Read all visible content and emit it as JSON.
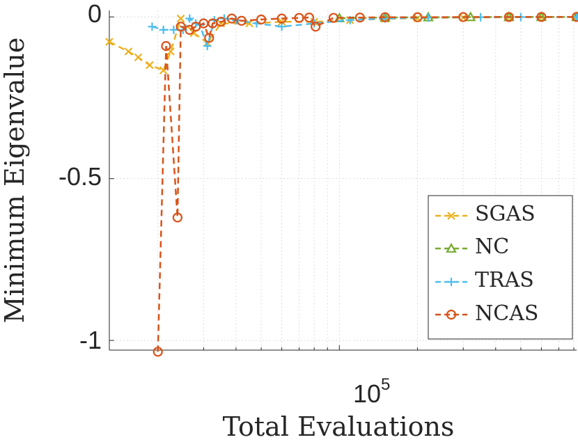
{
  "chart_data": {
    "type": "line",
    "xlabel": "Total Evaluations",
    "ylabel": "Minimum Eigenvalue",
    "x_scale": "log",
    "xlim": [
      13000,
      820000
    ],
    "ylim": [
      -1.03,
      0.02
    ],
    "yticks": [
      0,
      -0.5,
      -1
    ],
    "ytick_labels": [
      "0",
      "-0.5",
      "-1"
    ],
    "xtick_base": "10",
    "xtick_exponent": "5",
    "xtick_value": 100000,
    "grid": true,
    "legend_position": "bottom-right",
    "series": [
      {
        "name": "SGAS",
        "color": "#EDB120",
        "marker": "x",
        "x": [
          13000,
          15400,
          16800,
          18600,
          21000,
          22400,
          24500,
          27500,
          31000,
          35000,
          45000,
          60000,
          80000,
          110000,
          150000,
          200000,
          300000,
          450000,
          600000,
          820000
        ],
        "y": [
          -0.077,
          -0.107,
          -0.125,
          -0.149,
          -0.165,
          -0.107,
          -0.005,
          -0.05,
          -0.08,
          -0.02,
          -0.02,
          -0.015,
          -0.015,
          -0.01,
          -0.006,
          -0.004,
          -0.002,
          -0.001,
          -0.0005,
          -0.0003
        ]
      },
      {
        "name": "NC",
        "color": "#77AC30",
        "marker": "triangle",
        "x": [
          100000,
          150000,
          220000,
          320000,
          450000,
          600000,
          820000
        ],
        "y": [
          -0.004,
          -0.002,
          -0.001,
          -0.0005,
          -0.0003,
          -0.0002,
          -0.0001
        ]
      },
      {
        "name": "TRAS",
        "color": "#4DBEEE",
        "marker": "plus",
        "x": [
          19000,
          21000,
          23000,
          25000,
          26500,
          28000,
          29000,
          31000,
          33000,
          36000,
          40000,
          48000,
          60000,
          80000,
          110000,
          150000,
          220000,
          350000,
          500000,
          820000
        ],
        "y": [
          -0.03,
          -0.04,
          -0.04,
          -0.04,
          -0.005,
          -0.02,
          -0.025,
          -0.09,
          -0.01,
          -0.005,
          -0.01,
          -0.02,
          -0.03,
          -0.02,
          -0.01,
          -0.005,
          -0.002,
          -0.001,
          -0.0005,
          -0.0002
        ]
      },
      {
        "name": "NCAS",
        "color": "#D95319",
        "marker": "circle",
        "x": [
          20000,
          21500,
          23800,
          24500,
          26500,
          28000,
          30000,
          31500,
          32500,
          35000,
          38500,
          42000,
          50000,
          60000,
          70000,
          76500,
          81000,
          95000,
          120000,
          150000,
          200000,
          300000,
          450000,
          600000,
          820000
        ],
        "y": [
          -1.035,
          -0.09,
          -0.62,
          -0.03,
          -0.04,
          -0.03,
          -0.02,
          -0.065,
          -0.02,
          -0.015,
          -0.005,
          -0.012,
          -0.008,
          -0.005,
          -0.003,
          -0.002,
          -0.03,
          -0.003,
          -0.002,
          -0.001,
          -0.001,
          -0.0005,
          -0.0003,
          -0.0002,
          -0.0001
        ]
      }
    ]
  }
}
